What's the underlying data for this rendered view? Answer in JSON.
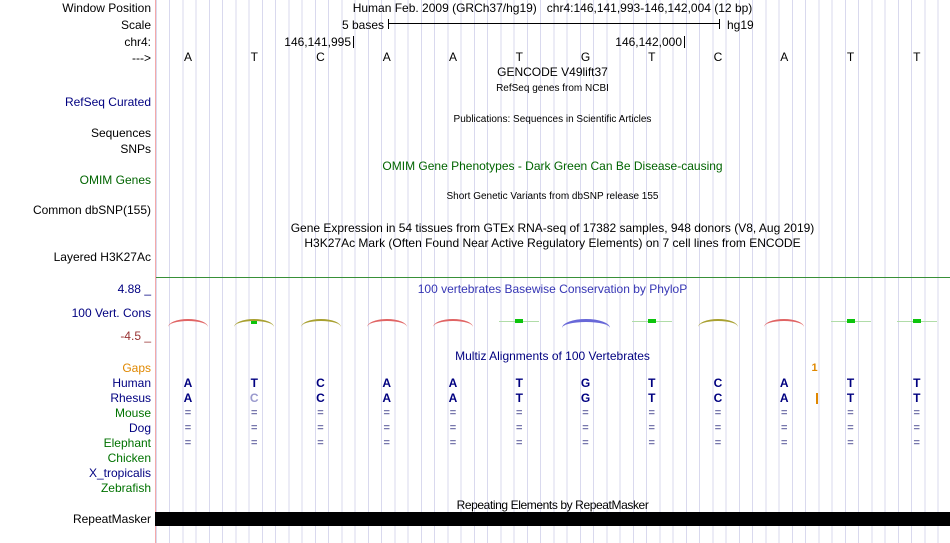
{
  "header": {
    "window_position_label": "Window Position",
    "assembly_title": "Human Feb. 2009 (GRCh37/hg19)   chr4:146,141,993-146,142,004 (12 bp)",
    "scale_label": "Scale",
    "scale_value": "5 bases",
    "assembly_short": "hg19",
    "chrom_label": "chr4:",
    "coord_left": "146,141,995",
    "coord_right": "146,142,000",
    "strand_arrow": "--->"
  },
  "sequence": [
    "A",
    "T",
    "C",
    "A",
    "A",
    "T",
    "G",
    "T",
    "C",
    "A",
    "T",
    "T"
  ],
  "tracks": {
    "gencode": {
      "title": "GENCODE V49lift37",
      "subtitle": "RefSeq genes from NCBI"
    },
    "refseq": {
      "label": "RefSeq Curated"
    },
    "publications": {
      "center": "Publications: Sequences in Scientific Articles",
      "label_sequences": "Sequences",
      "label_snps": "SNPs"
    },
    "omim": {
      "label": "OMIM Genes",
      "center": "OMIM Gene Phenotypes - Dark Green Can Be Disease-causing"
    },
    "dbsnp": {
      "label": "Common dbSNP(155)",
      "center": "Short Genetic Variants from dbSNP release 155"
    },
    "gtex": {
      "center": "Gene Expression in 54 tissues from GTEx RNA-seq of 17382 samples, 948 donors (V8, Aug 2019)"
    },
    "h3k27ac": {
      "label": "Layered H3K27Ac",
      "center": "H3K27Ac Mark (Often Found Near Active Regulatory Elements) on 7 cell lines from ENCODE"
    },
    "conservation": {
      "label": "100 Vert. Cons",
      "title": "100 vertebrates Basewise Conservation by PhyloP",
      "max_label": "4.88 _",
      "min_label": "-4.5 _",
      "marks": [
        "red",
        "olive_tick",
        "olive",
        "red",
        "red",
        "green_tick",
        "blue",
        "green_tick",
        "olive",
        "red",
        "green_tick",
        "green_tick"
      ]
    },
    "multiz": {
      "title": "Multiz Alignments of 100 Vertebrates",
      "insert": {
        "label": "1",
        "boundary": 10
      },
      "species": [
        {
          "name": "Gaps",
          "color": "orange",
          "cells": []
        },
        {
          "name": "Human",
          "color": "navy",
          "cells": [
            "A",
            "T",
            "C",
            "A",
            "A",
            "T",
            "G",
            "T",
            "C",
            "A",
            "T",
            "T"
          ]
        },
        {
          "name": "Rhesus",
          "color": "navy",
          "cells": [
            "A",
            "C",
            "C",
            "A",
            "A",
            "T",
            "G",
            "T",
            "C",
            "A",
            "T",
            "T"
          ],
          "muted": [
            1
          ],
          "insert_bar": true
        },
        {
          "name": "Mouse",
          "color": "green",
          "cells": [
            "=",
            "=",
            "=",
            "=",
            "=",
            "=",
            "=",
            "=",
            "=",
            "=",
            "=",
            "="
          ]
        },
        {
          "name": "Dog",
          "color": "navy",
          "cells": [
            "=",
            "=",
            "=",
            "=",
            "=",
            "=",
            "=",
            "=",
            "=",
            "=",
            "=",
            "="
          ]
        },
        {
          "name": "Elephant",
          "color": "green",
          "cells": [
            "=",
            "=",
            "=",
            "=",
            "=",
            "=",
            "=",
            "=",
            "=",
            "=",
            "=",
            "="
          ]
        },
        {
          "name": "Chicken",
          "color": "green",
          "cells": []
        },
        {
          "name": "X_tropicalis",
          "color": "navy",
          "cells": []
        },
        {
          "name": "Zebrafish",
          "color": "green",
          "cells": []
        }
      ]
    },
    "repeatmasker": {
      "label": "RepeatMasker",
      "title": "Repeating Elements by RepeatMasker"
    }
  },
  "colors": {
    "navy": "#000080",
    "green_label": "#007200",
    "dark_green": "#006400",
    "orange": "#e08800",
    "maroon": "#993333",
    "phylop_title": "#3535b4",
    "guide_line": "#d9d9ee",
    "pink_border": "#f4a9a9",
    "cons_red": "#e06464",
    "cons_olive": "#a8a030",
    "cons_blue": "#6868d8",
    "cons_bright_green": "#0cc40c",
    "cons_pale_green": "#b0dca8",
    "cons_topline": "#389038",
    "muted_base": "#9b9bce",
    "eq_glyph": "#7878ad"
  }
}
